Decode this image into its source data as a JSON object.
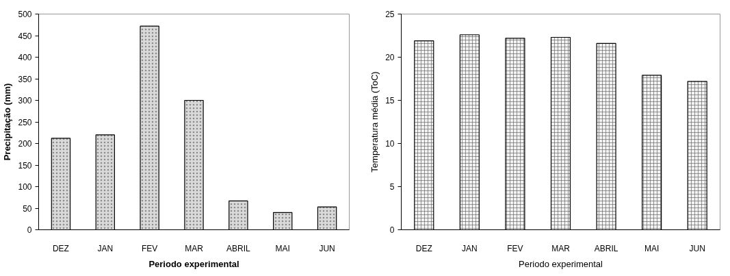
{
  "chart_data": [
    {
      "type": "bar",
      "xlabel": "Periodo experimental",
      "ylabel": "Precipitação (mm)",
      "categories": [
        "DEZ",
        "JAN",
        "FEV",
        "MAR",
        "ABRIL",
        "MAI",
        "JUN"
      ],
      "values": [
        212,
        220,
        472,
        300,
        67,
        40,
        53
      ],
      "color": "#d9d9d9",
      "ylim": [
        0,
        500
      ],
      "yticks": [
        0,
        50,
        100,
        150,
        200,
        250,
        300,
        350,
        400,
        450,
        500
      ],
      "grid": false
    },
    {
      "type": "bar",
      "xlabel": "Periodo experimental",
      "ylabel": "Temperatura média (ToC)",
      "categories": [
        "DEZ",
        "JAN",
        "FEV",
        "MAR",
        "ABRIL",
        "MAI",
        "JUN"
      ],
      "values": [
        21.9,
        22.6,
        22.2,
        22.3,
        21.6,
        17.9,
        17.2
      ],
      "color": "#f2f2f2",
      "ylim": [
        0,
        25
      ],
      "yticks": [
        0,
        5,
        10,
        15,
        20,
        25
      ],
      "grid": false
    }
  ]
}
